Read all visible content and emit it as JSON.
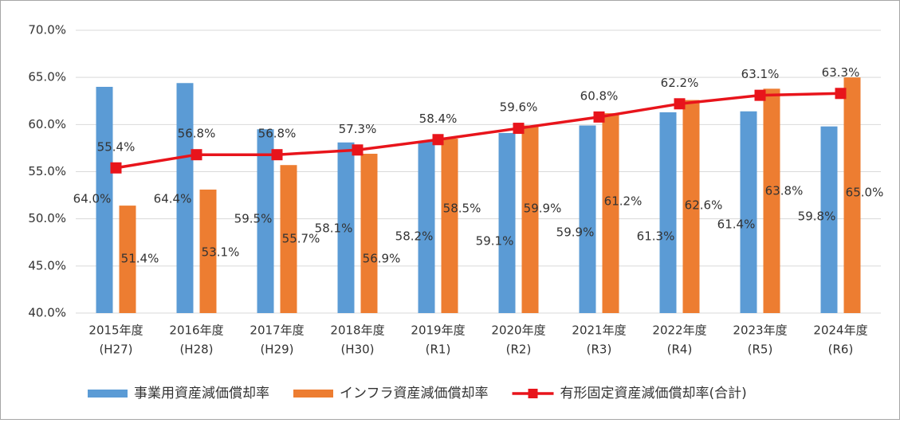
{
  "chart_data": {
    "type": "bar-line",
    "categories": [
      "2015年度",
      "2016年度",
      "2017年度",
      "2018年度",
      "2019年度",
      "2020年度",
      "2021年度",
      "2022年度",
      "2023年度",
      "2024年度"
    ],
    "category_sublabels": [
      "(H27)",
      "(H28)",
      "(H29)",
      "(H30)",
      "(R1)",
      "(R2)",
      "(R3)",
      "(R4)",
      "(R5)",
      "(R6)"
    ],
    "series": [
      {
        "name": "事業用資産減価償却率",
        "type": "bar",
        "color": "#5b9bd5",
        "values": [
          64.0,
          64.4,
          59.5,
          58.1,
          58.2,
          59.1,
          59.9,
          61.3,
          61.4,
          59.8
        ],
        "value_labels": [
          "64.0%",
          "64.4%",
          "59.5%",
          "58.1%",
          "58.2%",
          "59.1%",
          "59.9%",
          "61.3%",
          "61.4%",
          "59.8%"
        ]
      },
      {
        "name": "インフラ資産減価償却率",
        "type": "bar",
        "color": "#ed7d31",
        "values": [
          51.4,
          53.1,
          55.7,
          56.9,
          58.5,
          59.9,
          61.2,
          62.6,
          63.8,
          65.0
        ],
        "value_labels": [
          "51.4%",
          "53.1%",
          "55.7%",
          "56.9%",
          "58.5%",
          "59.9%",
          "61.2%",
          "62.6%",
          "63.8%",
          "65.0%"
        ]
      },
      {
        "name": "有形固定資産減価償却率(合計)",
        "type": "line",
        "color": "#e8141b",
        "values": [
          55.4,
          56.8,
          56.8,
          57.3,
          58.4,
          59.6,
          60.8,
          62.2,
          63.1,
          63.3
        ],
        "value_labels": [
          "55.4%",
          "56.8%",
          "56.8%",
          "57.3%",
          "58.4%",
          "59.6%",
          "60.8%",
          "62.2%",
          "63.1%",
          "63.3%"
        ]
      }
    ],
    "ylim": [
      40,
      70
    ],
    "yticks": [
      {
        "value": 40,
        "label": "40.0%"
      },
      {
        "value": 45,
        "label": "45.0%"
      },
      {
        "value": 50,
        "label": "50.0%"
      },
      {
        "value": 55,
        "label": "55.0%"
      },
      {
        "value": 60,
        "label": "60.0%"
      },
      {
        "value": 65,
        "label": "65.0%"
      },
      {
        "value": 70,
        "label": "70.0%"
      }
    ],
    "grid": true,
    "legend": "bottom"
  }
}
